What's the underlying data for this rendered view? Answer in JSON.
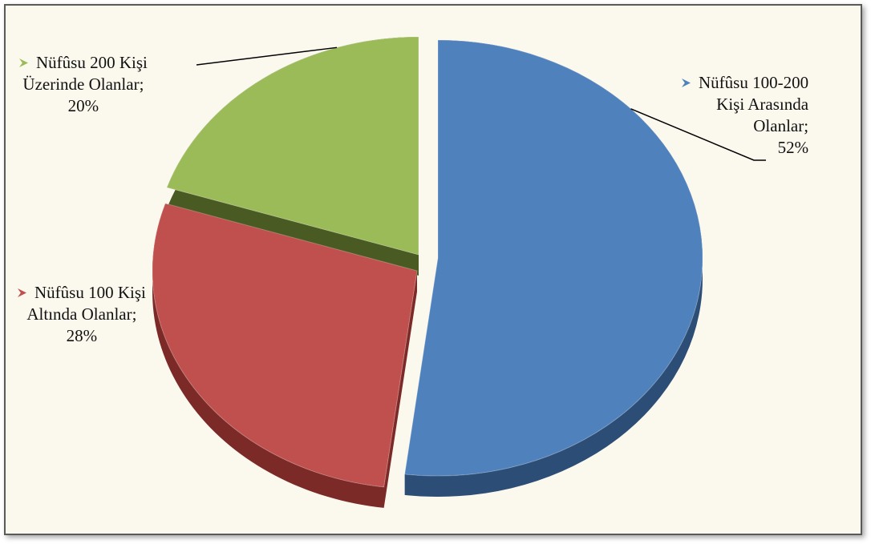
{
  "chart_data": {
    "type": "pie",
    "slices": [
      {
        "label_lines": [
          "Nüfûsu 100-200",
          "Kişi Arasında",
          "Olanlar;",
          "52%"
        ],
        "value": 52,
        "color": "#4f81bd",
        "side_color": "#2c4d75"
      },
      {
        "label_lines": [
          "Nüfûsu 100 Kişi",
          "Altında Olanlar;",
          "28%"
        ],
        "value": 28,
        "color": "#c0504d",
        "side_color": "#7b2a28"
      },
      {
        "label_lines": [
          "Nüfûsu 200 Kişi",
          "Üzerinde  Olanlar;",
          "20%"
        ],
        "value": 20,
        "color": "#9bbb59",
        "side_color": "#4a5a23"
      }
    ]
  }
}
